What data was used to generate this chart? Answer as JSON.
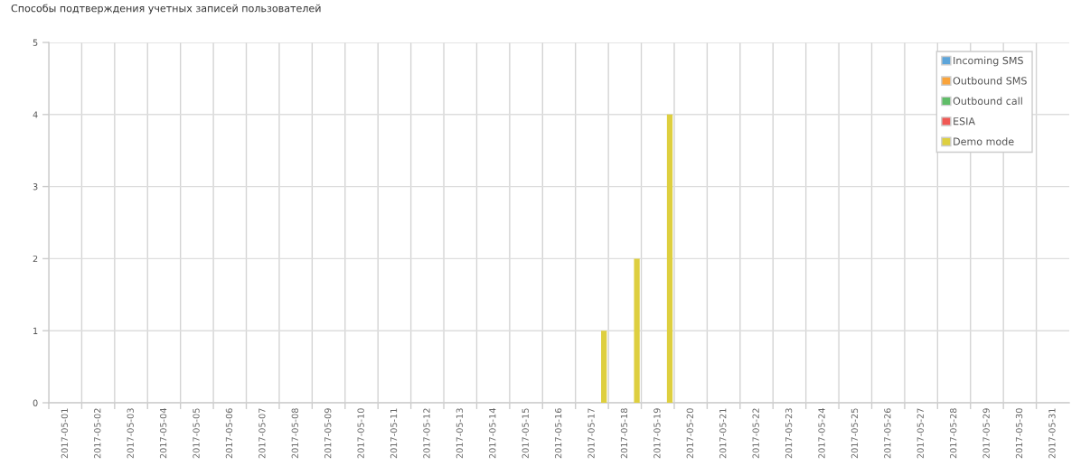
{
  "chart_data": {
    "type": "bar",
    "title": "Способы подтверждения учетных записей пользователей",
    "categories": [
      "2017-05-01",
      "2017-05-02",
      "2017-05-03",
      "2017-05-04",
      "2017-05-05",
      "2017-05-06",
      "2017-05-07",
      "2017-05-08",
      "2017-05-09",
      "2017-05-10",
      "2017-05-11",
      "2017-05-12",
      "2017-05-13",
      "2017-05-14",
      "2017-05-15",
      "2017-05-16",
      "2017-05-17",
      "2017-05-18",
      "2017-05-19",
      "2017-05-20",
      "2017-05-21",
      "2017-05-22",
      "2017-05-23",
      "2017-05-24",
      "2017-05-25",
      "2017-05-26",
      "2017-05-27",
      "2017-05-28",
      "2017-05-29",
      "2017-05-30",
      "2017-05-31"
    ],
    "series": [
      {
        "name": "Incoming SMS",
        "color": "#5da5da",
        "values": [
          0,
          0,
          0,
          0,
          0,
          0,
          0,
          0,
          0,
          0,
          0,
          0,
          0,
          0,
          0,
          0,
          0,
          0,
          0,
          0,
          0,
          0,
          0,
          0,
          0,
          0,
          0,
          0,
          0,
          0,
          0
        ]
      },
      {
        "name": "Outbound SMS",
        "color": "#faa43a",
        "values": [
          0,
          0,
          0,
          0,
          0,
          0,
          0,
          0,
          0,
          0,
          0,
          0,
          0,
          0,
          0,
          0,
          0,
          0,
          0,
          0,
          0,
          0,
          0,
          0,
          0,
          0,
          0,
          0,
          0,
          0,
          0
        ]
      },
      {
        "name": "Outbound call",
        "color": "#60bd68",
        "values": [
          0,
          0,
          0,
          0,
          0,
          0,
          0,
          0,
          0,
          0,
          0,
          0,
          0,
          0,
          0,
          0,
          0,
          0,
          0,
          0,
          0,
          0,
          0,
          0,
          0,
          0,
          0,
          0,
          0,
          0,
          0
        ]
      },
      {
        "name": "ESIA",
        "color": "#f15854",
        "values": [
          0,
          0,
          0,
          0,
          0,
          0,
          0,
          0,
          0,
          0,
          0,
          0,
          0,
          0,
          0,
          0,
          0,
          0,
          0,
          0,
          0,
          0,
          0,
          0,
          0,
          0,
          0,
          0,
          0,
          0,
          0
        ]
      },
      {
        "name": "Demo mode",
        "color": "#decf3f",
        "values": [
          0,
          0,
          0,
          0,
          0,
          0,
          0,
          0,
          0,
          0,
          0,
          0,
          0,
          0,
          0,
          0,
          1,
          2,
          4,
          0,
          0,
          0,
          0,
          0,
          0,
          0,
          0,
          0,
          0,
          0,
          0
        ]
      }
    ],
    "ylim": [
      0,
      5
    ],
    "yticks": [
      0,
      1,
      2,
      3,
      4,
      5
    ],
    "grid": true,
    "legend": "top right"
  }
}
